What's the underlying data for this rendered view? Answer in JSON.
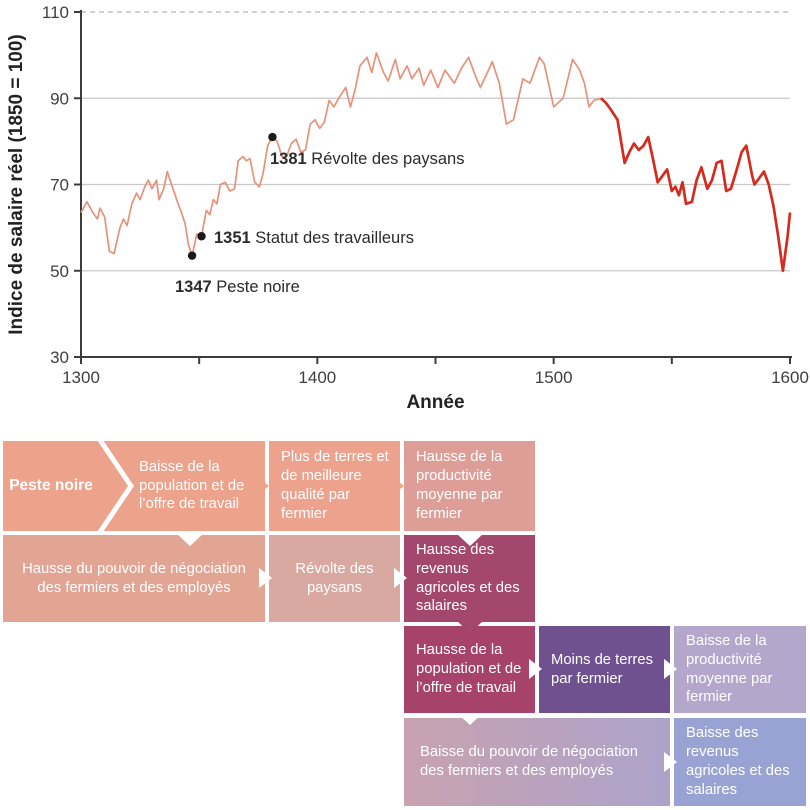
{
  "chart_data": {
    "type": "line",
    "title": "",
    "xlabel": "Année",
    "ylabel": "Indice de salaire réel (1850 = 100)",
    "xlim": [
      1300,
      1600
    ],
    "ylim": [
      30,
      110
    ],
    "x_ticks_labeled": [
      1300,
      1400,
      1500,
      1600
    ],
    "x_ticks_all": [
      1300,
      1350,
      1400,
      1450,
      1500,
      1550,
      1600
    ],
    "y_ticks": [
      30,
      50,
      70,
      90,
      110
    ],
    "grid": "horizontal",
    "legend": "none",
    "red_from_year": 1520,
    "colors": {
      "salmon": "#E8917A",
      "red": "#D52B1E",
      "grid": "#C8C8C8",
      "grid_dashed": "#B4B4B4",
      "axis": "#3C3C3C",
      "dot": "#1A1A1A",
      "text": "#3F3F3F",
      "title_text": "#222222"
    },
    "series": [
      {
        "name": "Indice de salaire réel",
        "x": [
          1300,
          1302.5,
          1305,
          1307,
          1308,
          1310,
          1312,
          1314,
          1316.5,
          1318,
          1319.5,
          1321.5,
          1323.5,
          1325,
          1327,
          1328.5,
          1330,
          1332,
          1333,
          1335,
          1336.5,
          1338,
          1340.5,
          1342.5,
          1344,
          1345.5,
          1347,
          1349,
          1351,
          1353,
          1354.5,
          1356,
          1357.5,
          1359,
          1361,
          1363,
          1365,
          1366.5,
          1368.5,
          1370,
          1371.5,
          1373.5,
          1375.5,
          1377,
          1379,
          1381,
          1383,
          1385,
          1387,
          1389,
          1391,
          1393,
          1395,
          1397,
          1399,
          1401,
          1403,
          1405,
          1407,
          1409,
          1412,
          1414,
          1416,
          1418,
          1421,
          1423,
          1425,
          1428,
          1430,
          1433,
          1435,
          1438,
          1440,
          1443,
          1445,
          1448,
          1451,
          1454,
          1458,
          1461,
          1464,
          1467,
          1469,
          1472,
          1474,
          1477,
          1480,
          1483,
          1487,
          1490,
          1494,
          1496,
          1500,
          1504,
          1508,
          1511,
          1513,
          1515,
          1517,
          1520,
          1522,
          1524,
          1527,
          1530,
          1532,
          1534,
          1536,
          1538,
          1540,
          1542,
          1544,
          1546,
          1548,
          1550,
          1551.5,
          1553,
          1554.5,
          1556,
          1558.5,
          1560.5,
          1562.5,
          1565,
          1567,
          1569,
          1571,
          1573,
          1575,
          1577.5,
          1579.5,
          1581.5,
          1584,
          1585,
          1587,
          1589,
          1591,
          1593,
          1595,
          1597,
          1599,
          1600
        ],
        "y": [
          63.5,
          66,
          63.5,
          62,
          64.5,
          62.5,
          54.5,
          54,
          60,
          62,
          60.5,
          65.5,
          68,
          66.5,
          69.5,
          71,
          69,
          71,
          66.5,
          69,
          73,
          70.5,
          66.5,
          63.5,
          61,
          56,
          53.5,
          58.5,
          58,
          64,
          63,
          66.5,
          65.5,
          70,
          70.5,
          68.5,
          69,
          75.5,
          76.5,
          75.5,
          76,
          70.5,
          69.5,
          72.5,
          79,
          81,
          80,
          76.5,
          76.5,
          79.5,
          80.5,
          77.5,
          78,
          84,
          85,
          83,
          84.5,
          89.5,
          88,
          90,
          92.5,
          88,
          92,
          97.5,
          99.5,
          96,
          100.5,
          96,
          94,
          99,
          94.5,
          97.5,
          94.5,
          97,
          93,
          96.5,
          92.5,
          96.5,
          93.5,
          97,
          99.5,
          95,
          92.5,
          96,
          98.5,
          93.5,
          84,
          85,
          94.5,
          93.5,
          99.5,
          98,
          88,
          90,
          99,
          96.5,
          93.5,
          88,
          89.5,
          90,
          89,
          87.5,
          85,
          75,
          77.5,
          79.5,
          78,
          79,
          81,
          76,
          70.5,
          72,
          73.5,
          68.5,
          69.5,
          67.5,
          70.5,
          65.5,
          66,
          71,
          74,
          69,
          71,
          75,
          75.5,
          68.5,
          69,
          73.5,
          77.5,
          79,
          72,
          70,
          71.5,
          73,
          70,
          65,
          58,
          50,
          58,
          63.5
        ]
      }
    ],
    "annotations": [
      {
        "year": 1347,
        "value": 53.5,
        "year_label": "1347",
        "label": "Peste noire"
      },
      {
        "year": 1351,
        "value": 58,
        "year_label": "1351",
        "label": "Statut des travailleurs"
      },
      {
        "year": 1381,
        "value": 81,
        "year_label": "1381",
        "label": "Révolte des paysans"
      }
    ]
  },
  "diagram": {
    "arrow_colors": {
      "salmon": "#EDA28B",
      "white": "#FFFFFF",
      "maroon": "#A3486C"
    },
    "chevron_color": "#FFFFFF",
    "boxes": [
      {
        "label": "Peste noire",
        "label2": "Baisse de la population et de l’offre de travail",
        "color": "#EDA28B"
      },
      {
        "label": "Plus de terres et de meilleure qualité par fermier",
        "color": "#ECA28C"
      },
      {
        "label": "Hausse de la productivité moyenne par fermier",
        "color": "#DC9E96"
      },
      {
        "label": "Hausse du pouvoir de négociation des fermiers et des employés",
        "color": "#E2A493"
      },
      {
        "label": "Révolte des paysans",
        "color": "#D9A9A1"
      },
      {
        "label": "Hausse des revenus agricoles et des salaires",
        "color": "#A3486C"
      },
      {
        "label": "Hausse de la population et de l’offre de travail",
        "color": "#A7426A"
      },
      {
        "label": "Moins de terres par fermier",
        "color": "#6F5190"
      },
      {
        "label": "Baisse de la productivité moyenne par fermier",
        "color": "#B3A7CB"
      },
      {
        "label": "Baisse du pouvoir de négociation des fermiers et des employés",
        "color": "#C8A2AF",
        "color2": "#ACA3CB"
      },
      {
        "label": "Baisse des revenus agricoles et des salaires",
        "color": "#99A3D3"
      }
    ]
  }
}
